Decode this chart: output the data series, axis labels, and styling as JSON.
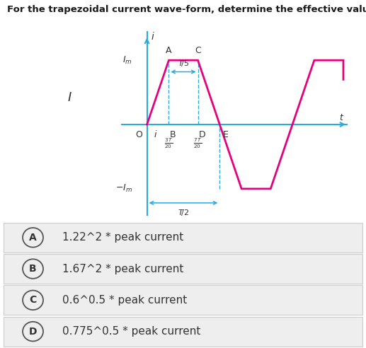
{
  "title": "For the trapezoidal current wave-form, determine the effective value.",
  "title_fontsize": 9.5,
  "title_color": "#1a1a1a",
  "bg_color": "#dff0f0",
  "wave_color": "#e6007e",
  "axis_color": "#29abe2",
  "text_color": "#333333",
  "answers": [
    {
      "letter": "A",
      "text": "1.22^2 * peak current"
    },
    {
      "letter": "B",
      "text": "1.67^2 * peak current"
    },
    {
      "letter": "C",
      "text": "0.6^0.5 * peak current"
    },
    {
      "letter": "D",
      "text": "0.775^0.5 * peak current"
    }
  ],
  "answer_bg": "#eeeeee",
  "answer_border": "#cccccc"
}
